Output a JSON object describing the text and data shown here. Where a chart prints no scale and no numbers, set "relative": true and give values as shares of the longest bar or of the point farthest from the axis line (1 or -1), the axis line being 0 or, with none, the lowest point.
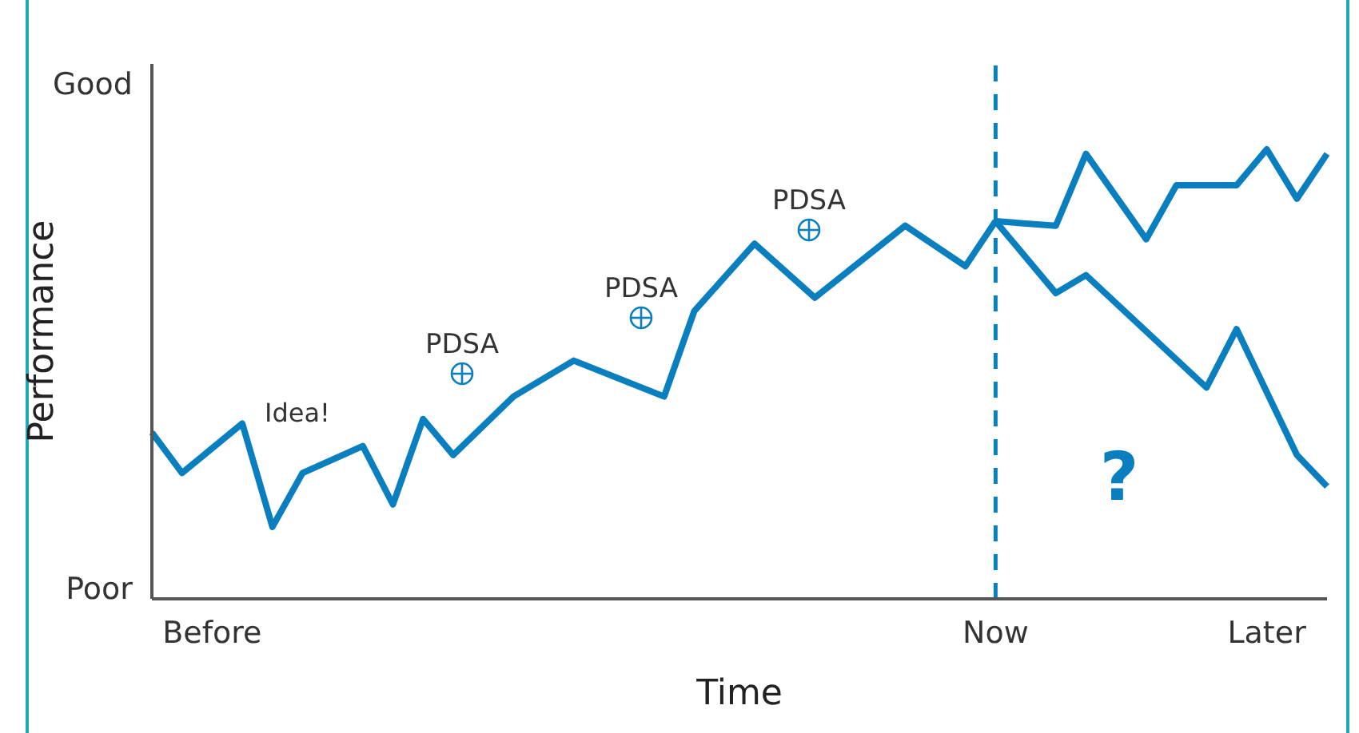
{
  "chart_data": {
    "type": "line",
    "relative": true,
    "xlabel": "Time",
    "ylabel": "Performance",
    "grid": false,
    "marker": "none",
    "categories": [
      null,
      null,
      "Before",
      null,
      null,
      null,
      null,
      null,
      null,
      null,
      null,
      null,
      null,
      null,
      null,
      null,
      null,
      null,
      null,
      null,
      null,
      null,
      null,
      null,
      null,
      null,
      null,
      null,
      "Now",
      null,
      null,
      null,
      null,
      null,
      null,
      null,
      null,
      "Later",
      null,
      null
    ],
    "series": [
      {
        "color": "#0a7fc0",
        "values": [
          0.37,
          0.28,
          null,
          0.39,
          0.16,
          0.28,
          null,
          0.34,
          0.21,
          0.4,
          0.32,
          null,
          0.45,
          null,
          0.53,
          null,
          null,
          0.45,
          0.64,
          null,
          0.79,
          null,
          0.67,
          null,
          null,
          0.83,
          null,
          0.74,
          0.84,
          null,
          null,
          null,
          null,
          null,
          null,
          null,
          null,
          null,
          null,
          null
        ]
      },
      {
        "color": "#0a7fc0",
        "values": [
          null,
          null,
          null,
          null,
          null,
          null,
          null,
          null,
          null,
          null,
          null,
          null,
          null,
          null,
          null,
          null,
          null,
          null,
          null,
          null,
          null,
          null,
          null,
          null,
          null,
          null,
          null,
          null,
          0.84,
          null,
          0.83,
          0.99,
          null,
          0.8,
          0.92,
          null,
          0.92,
          1,
          0.89,
          0.99
        ]
      },
      {
        "color": "#0a7fc0",
        "values": [
          null,
          null,
          null,
          null,
          null,
          null,
          null,
          null,
          null,
          null,
          null,
          null,
          null,
          null,
          null,
          null,
          null,
          null,
          null,
          null,
          null,
          null,
          null,
          null,
          null,
          null,
          null,
          null,
          0.84,
          null,
          0.68,
          0.72,
          null,
          null,
          null,
          0.47,
          0.6,
          null,
          0.32,
          0.25
        ]
      }
    ],
    "ref_lines": [
      {
        "axis": "x",
        "value": "Now",
        "color": "#0a7fc0",
        "line_style": "dashed"
      }
    ],
    "annotations": [
      "Good",
      "Poor",
      "Idea!",
      "PDSA",
      "PDSA",
      "PDSA",
      "?"
    ]
  }
}
